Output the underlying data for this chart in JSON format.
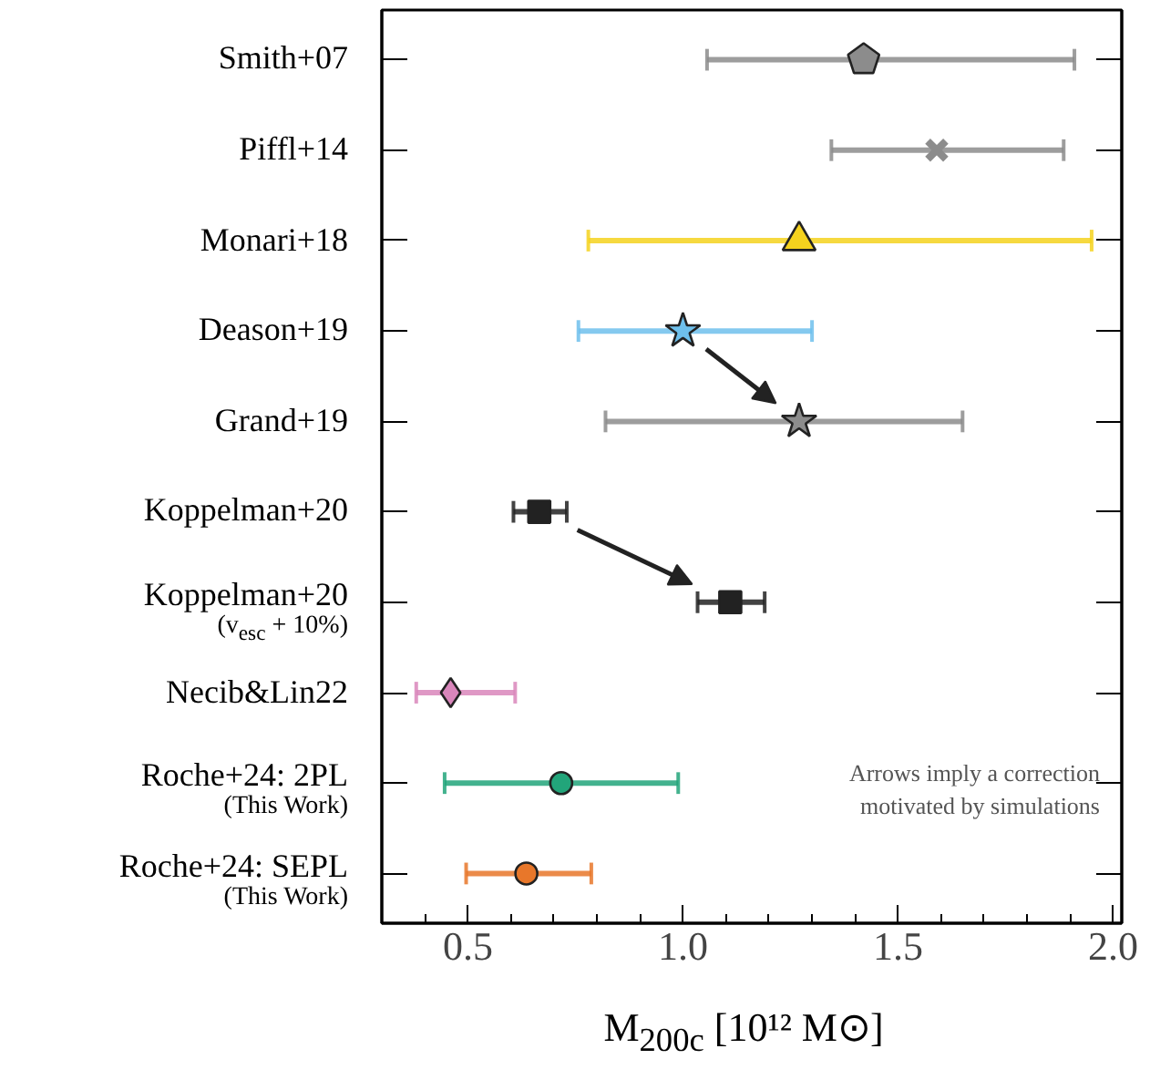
{
  "chart_data": {
    "type": "scatter",
    "orientation": "horizontal",
    "categories": [
      "Smith+07",
      "Piffl+14",
      "Monari+18",
      "Deason+19",
      "Grand+19",
      "Koppelman+20",
      "Koppelman+20\n(v$_{esc}$ + 10%)",
      "Necib&Lin22",
      "Roche+24: 2PL\n(This Work)",
      "Roche+24: SEPL\n(This Work)"
    ],
    "series": [
      {
        "color": "#8c8c8c",
        "values": [
          1.42,
          null,
          null,
          null,
          null,
          null,
          null,
          null,
          null,
          null
        ],
        "errors": [
          [
            1.056,
            1.91
          ],
          null,
          null,
          null,
          null,
          null,
          null,
          null,
          null,
          null
        ]
      },
      {
        "color": "#8c8c8c",
        "marker": "cross",
        "values": [
          null,
          1.59,
          null,
          null,
          null,
          null,
          null,
          null,
          null,
          null
        ],
        "errors": [
          null,
          [
            1.345,
            1.885
          ],
          null,
          null,
          null,
          null,
          null,
          null,
          null,
          null
        ]
      },
      {
        "color": "#f5d21e",
        "marker": "triangle",
        "values": [
          null,
          null,
          1.27,
          null,
          null,
          null,
          null,
          null,
          null,
          null
        ],
        "errors": [
          null,
          null,
          [
            0.78,
            1.95
          ],
          null,
          null,
          null,
          null,
          null,
          null,
          null
        ]
      },
      {
        "color": "#6ec0ec",
        "marker": "star",
        "values": [
          null,
          null,
          null,
          1.0,
          null,
          null,
          null,
          null,
          null,
          null
        ],
        "errors": [
          null,
          null,
          null,
          [
            0.757,
            1.3
          ],
          null,
          null,
          null,
          null,
          null,
          null
        ]
      },
      {
        "color": "#8c8c8c",
        "marker": "star",
        "values": [
          null,
          null,
          null,
          null,
          1.27,
          null,
          null,
          null,
          null,
          null
        ],
        "errors": [
          null,
          null,
          null,
          null,
          [
            0.82,
            1.65
          ],
          null,
          null,
          null,
          null,
          null
        ]
      },
      {
        "color": "#222222",
        "marker": "square",
        "values": [
          null,
          null,
          null,
          null,
          null,
          0.666,
          null,
          null,
          null,
          null
        ],
        "errors": [
          null,
          null,
          null,
          null,
          null,
          [
            0.606,
            0.73
          ],
          null,
          null,
          null,
          null
        ]
      },
      {
        "color": "#222222",
        "marker": "square",
        "values": [
          null,
          null,
          null,
          null,
          null,
          null,
          1.11,
          null,
          null,
          null
        ],
        "errors": [
          null,
          null,
          null,
          null,
          null,
          null,
          [
            1.034,
            1.19
          ],
          null,
          null,
          null
        ]
      },
      {
        "color": "#d986bb",
        "marker": "diamond",
        "values": [
          null,
          null,
          null,
          null,
          null,
          null,
          null,
          0.46,
          null,
          null
        ],
        "errors": [
          null,
          null,
          null,
          null,
          null,
          null,
          null,
          [
            0.38,
            0.61
          ],
          null,
          null
        ]
      },
      {
        "color": "#22a57a",
        "marker": "circle",
        "values": [
          null,
          null,
          null,
          null,
          null,
          null,
          null,
          null,
          0.717,
          null
        ],
        "errors": [
          null,
          null,
          null,
          null,
          null,
          null,
          null,
          null,
          [
            0.446,
            0.989
          ],
          null
        ]
      },
      {
        "color": "#e8772a",
        "marker": "circle",
        "values": [
          null,
          null,
          null,
          null,
          null,
          null,
          null,
          null,
          null,
          0.636
        ],
        "errors": [
          null,
          null,
          null,
          null,
          null,
          null,
          null,
          null,
          null,
          [
            0.496,
            0.787
          ]
        ]
      }
    ],
    "xlabel": "M$_{200c}$ [10¹² M⊙]",
    "xlim": [
      0.3,
      2.02
    ],
    "xticks": [
      0.5,
      {
        "value": 1,
        "label": "1.0"
      },
      1.5,
      {
        "value": 2,
        "label": "2.0"
      }
    ],
    "annotations": [
      "Arrows imply a correction\nmotivated by simulations"
    ]
  }
}
